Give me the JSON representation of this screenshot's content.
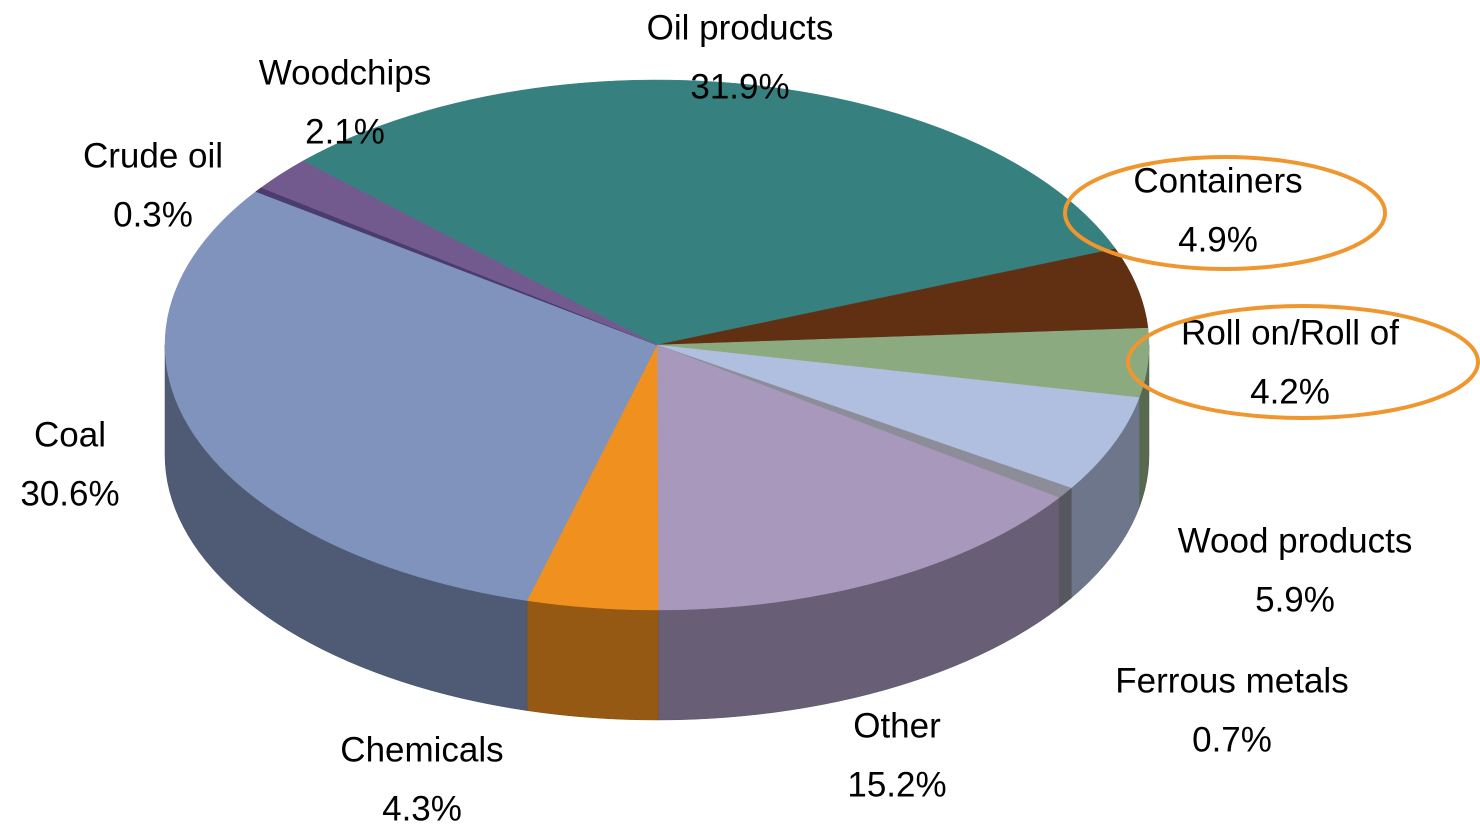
{
  "chart_data": {
    "type": "pie",
    "categories": [
      "Oil products",
      "Containers",
      "Roll on/Roll of",
      "Wood products",
      "Ferrous metals",
      "Other",
      "Chemicals",
      "Coal",
      "Crude oil",
      "Woodchips"
    ],
    "values": [
      31.9,
      4.9,
      4.2,
      5.9,
      0.7,
      15.2,
      4.3,
      30.6,
      0.3,
      2.1
    ],
    "value_labels": [
      "31.9%",
      "4.9%",
      "4.2%",
      "5.9%",
      "0.7%",
      "15.2%",
      "4.3%",
      "30.6%",
      "0.3%",
      "2.1%"
    ],
    "colors": [
      "#36807f",
      "#613012",
      "#8caa80",
      "#b0bfdf",
      "#8d8d9a",
      "#a798bc",
      "#f0901e",
      "#7f93bc",
      "#4a3d6e",
      "#725a8f"
    ]
  }
}
